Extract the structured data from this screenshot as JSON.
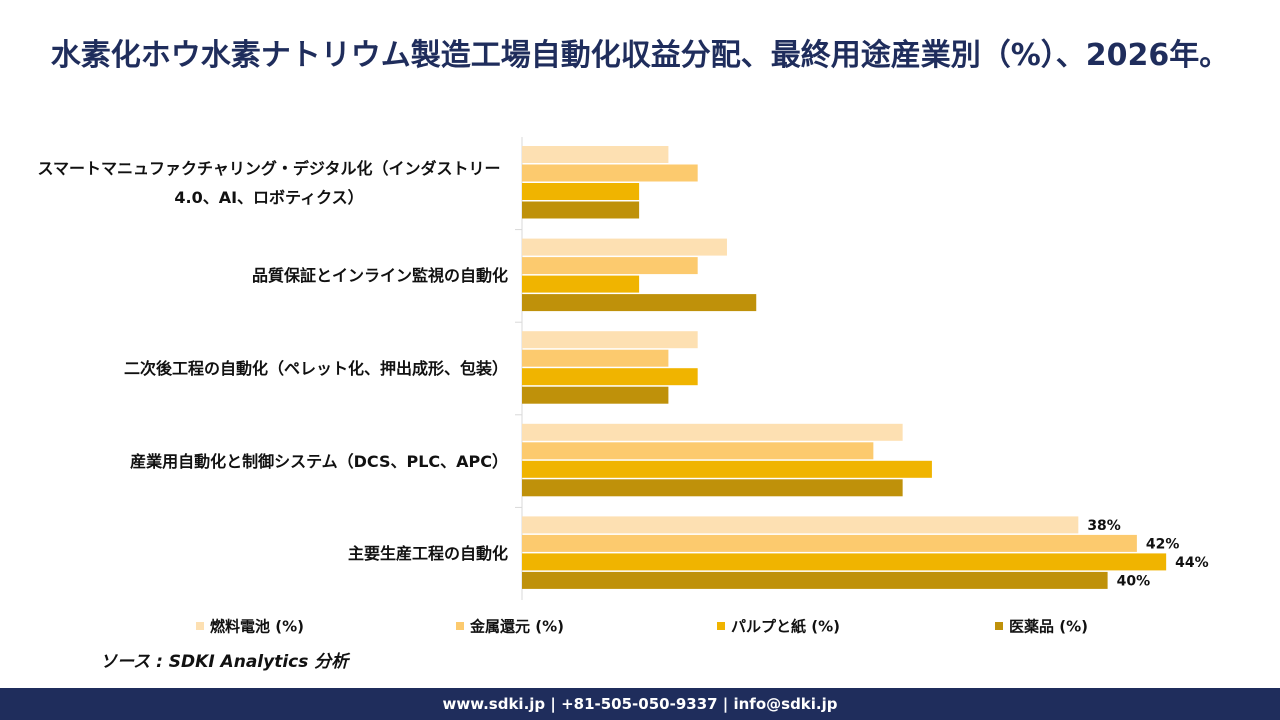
{
  "chart_data": {
    "type": "bar",
    "orientation": "horizontal",
    "title": "水素化ホウ水素ナトリウム製造工場自動化収益分配、最終用途産業別（%）、2026年。",
    "categories": [
      "スマートマニュファクチャリング・デジタル化（インダストリー4.0、AI、ロボティクス）",
      "品質保証とインライン監視の自動化",
      "二次後工程の自動化（ペレット化、押出成形、包装）",
      "産業用自動化と制御システム（DCS、PLC、APC）",
      "主要生産工程の自動化"
    ],
    "series": [
      {
        "name": "燃料電池 (%)",
        "color": "#fde0b2",
        "values": [
          10,
          14,
          12,
          26,
          38
        ],
        "value_labels": [
          null,
          null,
          null,
          null,
          "38%"
        ]
      },
      {
        "name": "金属還元 (%)",
        "color": "#fcca6e",
        "values": [
          12,
          12,
          10,
          24,
          42
        ],
        "value_labels": [
          null,
          null,
          null,
          null,
          "42%"
        ]
      },
      {
        "name": "パルプと紙 (%)",
        "color": "#f0b400",
        "values": [
          8,
          8,
          12,
          28,
          44
        ],
        "value_labels": [
          null,
          null,
          null,
          null,
          "44%"
        ]
      },
      {
        "name": "医薬品 (%)",
        "color": "#bf910a",
        "values": [
          8,
          16,
          10,
          26,
          40
        ],
        "value_labels": [
          null,
          null,
          null,
          null,
          "40%"
        ]
      }
    ],
    "xlim": [
      0,
      50
    ],
    "source": "ソース : SDKI Analytics 分析",
    "footer": "www.sdki.jp | +81-505-050-9337 | info@sdki.jp"
  }
}
